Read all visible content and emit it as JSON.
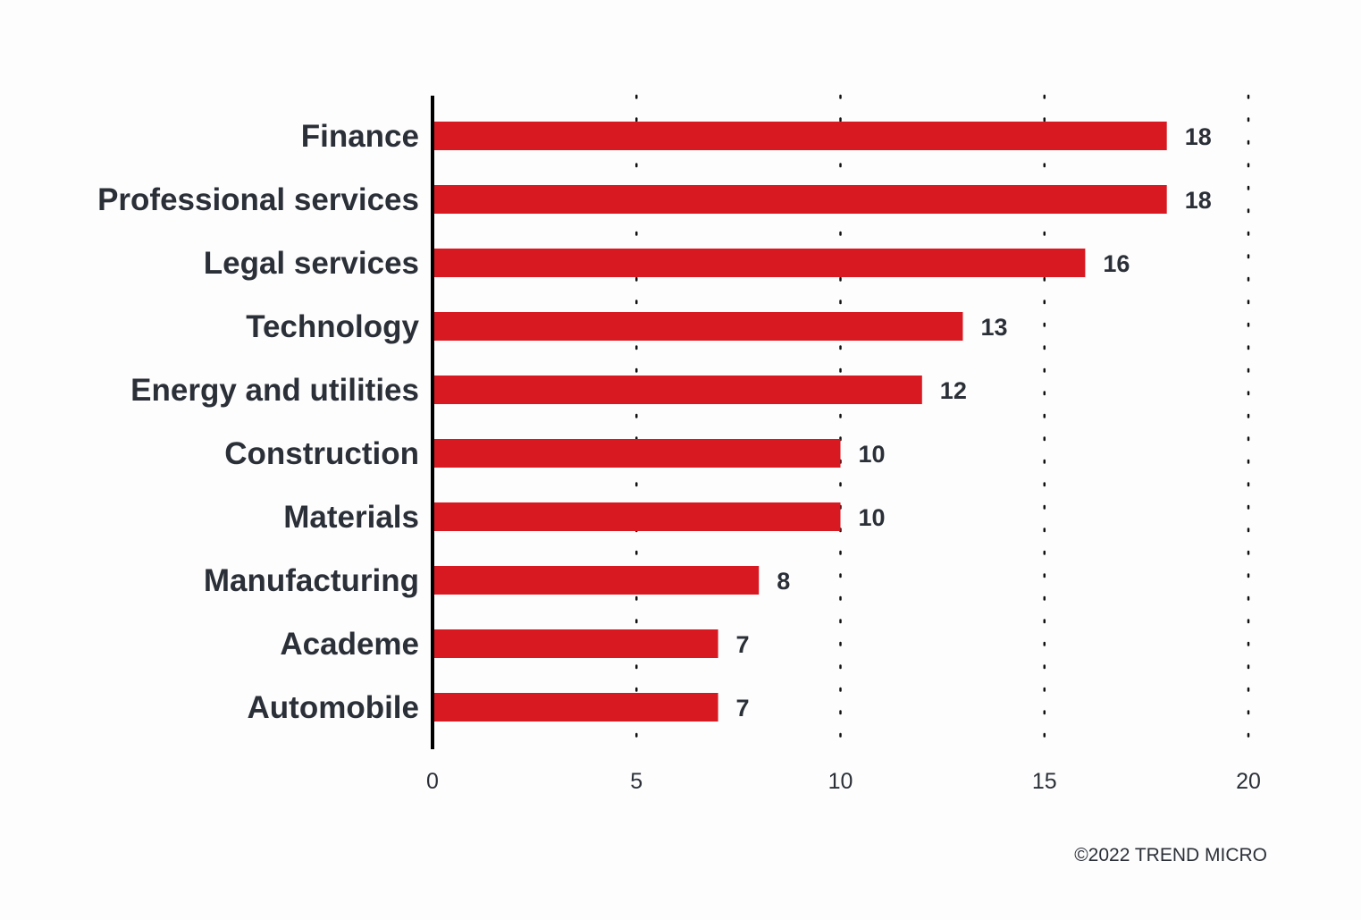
{
  "chart_data": {
    "type": "bar",
    "orientation": "horizontal",
    "title": "",
    "xlabel": "",
    "ylabel": "",
    "categories": [
      "Finance",
      "Professional services",
      "Legal services",
      "Technology",
      "Energy and utilities",
      "Construction",
      "Materials",
      "Manufacturing",
      "Academe",
      "Automobile"
    ],
    "values": [
      18,
      18,
      16,
      13,
      12,
      10,
      10,
      8,
      7,
      7
    ],
    "xlim": [
      0,
      20
    ],
    "xticks": [
      0,
      5,
      10,
      15,
      20
    ],
    "grid": "dotted vertical",
    "data_labels": true,
    "bar_color": "#d81921"
  },
  "footer": {
    "copyright": "©2022 TREND MICRO"
  }
}
